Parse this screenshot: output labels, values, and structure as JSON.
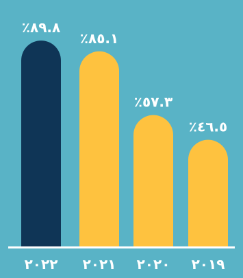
{
  "chart_data": {
    "type": "bar",
    "categories": [
      "٢٠٢٢",
      "٢٠٢١",
      "٢٠٢٠",
      "٢٠١٩"
    ],
    "values": [
      89.8,
      85.1,
      57.3,
      46.5
    ],
    "value_labels": [
      "٪٨٩.٨",
      "٪٨٥.١",
      "٪٥٧.٣",
      "٪٤٦.٥"
    ],
    "ylim": [
      0,
      100
    ],
    "grid": false,
    "legend": "none",
    "colors": {
      "background": "#59b3c6",
      "highlight_bar": "#0f3556",
      "bar": "#fec23f",
      "baseline": "#ffffff",
      "text": "#ffffff"
    },
    "highlight_index": 0
  }
}
